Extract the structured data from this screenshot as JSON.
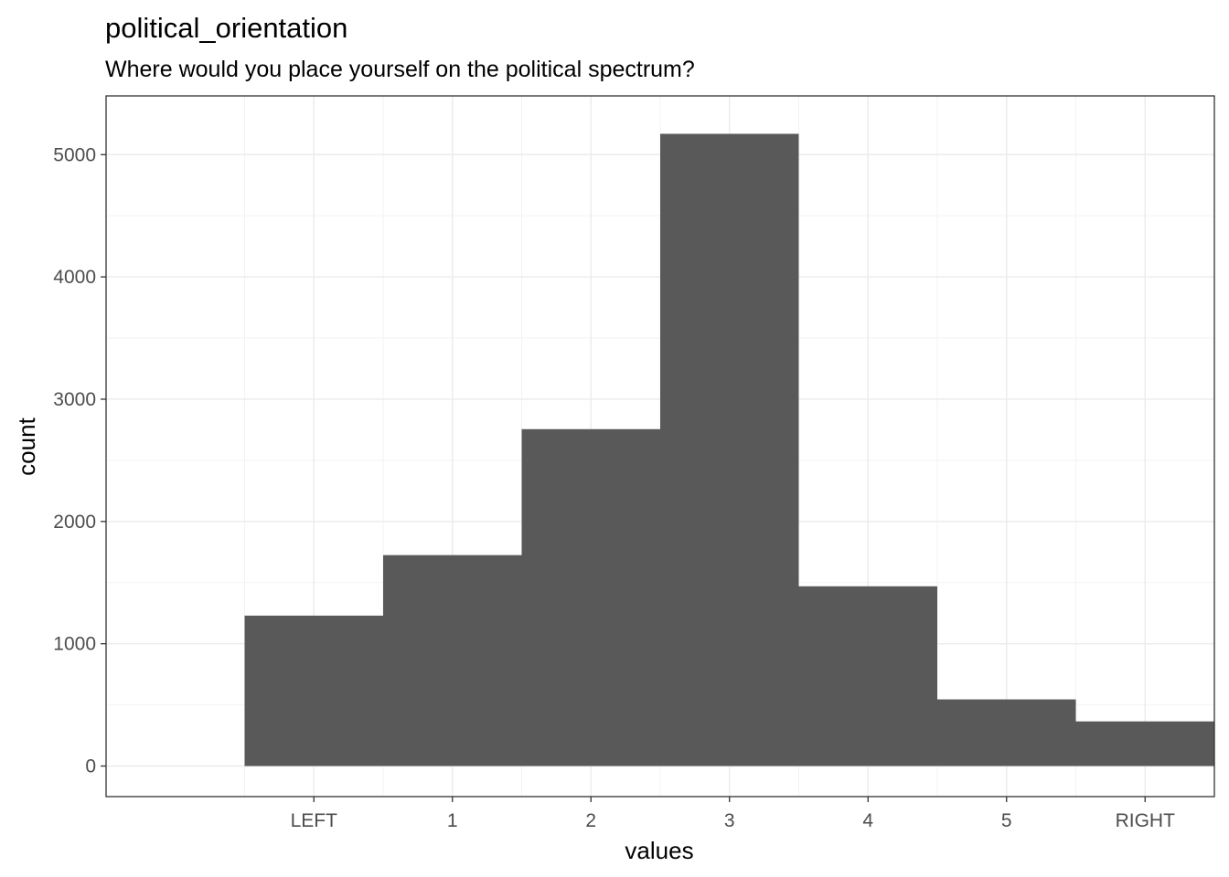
{
  "chart_data": {
    "type": "bar",
    "title": "political_orientation",
    "subtitle": "Where would you place yourself on the political spectrum?",
    "xlabel": "values",
    "ylabel": "count",
    "categories": [
      "LEFT",
      "1",
      "2",
      "3",
      "4",
      "5",
      "RIGHT"
    ],
    "values": [
      1230,
      1725,
      2755,
      5170,
      1470,
      545,
      365
    ],
    "ylim": [
      -250,
      5480
    ],
    "yticks": [
      0,
      1000,
      2000,
      3000,
      4000,
      5000
    ],
    "grid": true,
    "bar_color": "#595959",
    "grid_major_color": "#ebebeb",
    "grid_minor_color": "#f3f3f3",
    "panel_border_color": "#333333"
  }
}
